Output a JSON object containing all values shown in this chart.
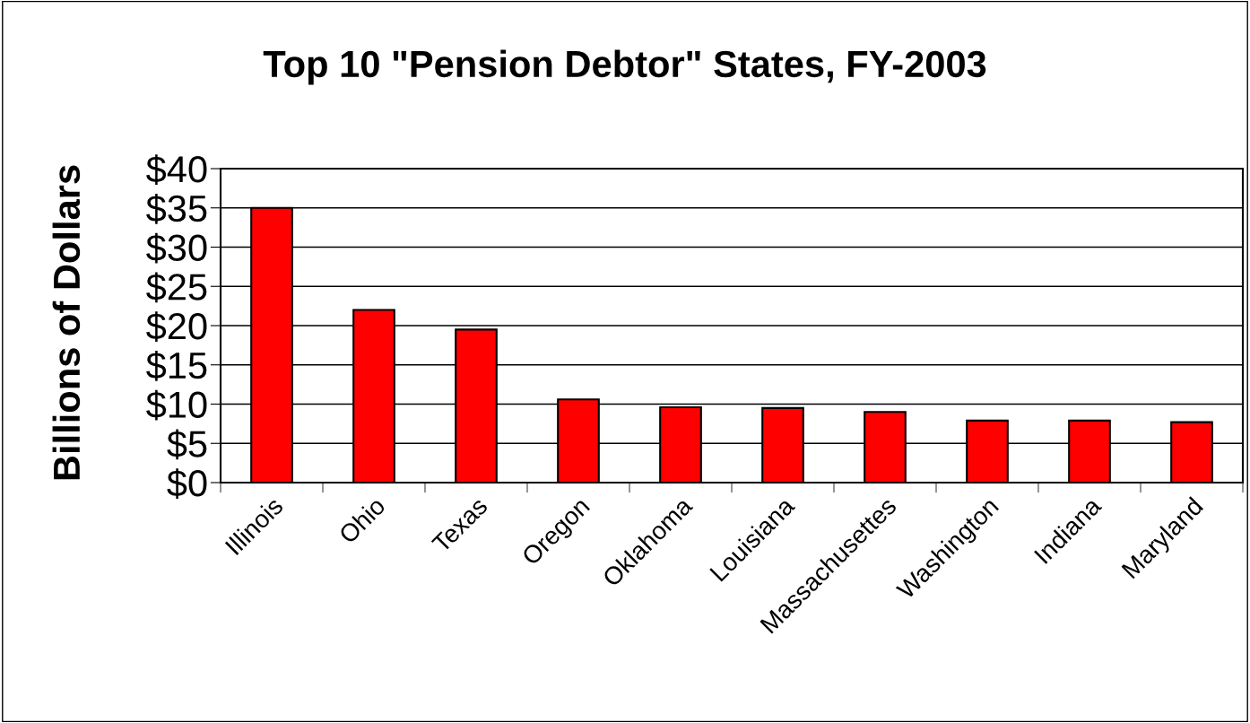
{
  "chart_data": {
    "type": "bar",
    "title": "Top 10 \"Pension Debtor\" States, FY-2003",
    "ylabel": "Billions of Dollars",
    "categories": [
      "Illinois",
      "Ohio",
      "Texas",
      "Oregon",
      "Oklahoma",
      "Louisiana",
      "Massachusettes",
      "Washington",
      "Indiana",
      "Maryland"
    ],
    "values": [
      35,
      22,
      19.5,
      10.6,
      9.6,
      9.5,
      9.0,
      7.9,
      7.9,
      7.7
    ],
    "color": "#ff0000",
    "ylim": [
      0,
      40
    ],
    "yticks": [
      {
        "value": 0,
        "label": "$0"
      },
      {
        "value": 5,
        "label": "$5"
      },
      {
        "value": 10,
        "label": "$10"
      },
      {
        "value": 15,
        "label": "$15"
      },
      {
        "value": 20,
        "label": "$20"
      },
      {
        "value": 25,
        "label": "$25"
      },
      {
        "value": 30,
        "label": "$30"
      },
      {
        "value": 35,
        "label": "$35"
      },
      {
        "value": 40,
        "label": "$40"
      }
    ],
    "grid": "y",
    "legend": false
  }
}
